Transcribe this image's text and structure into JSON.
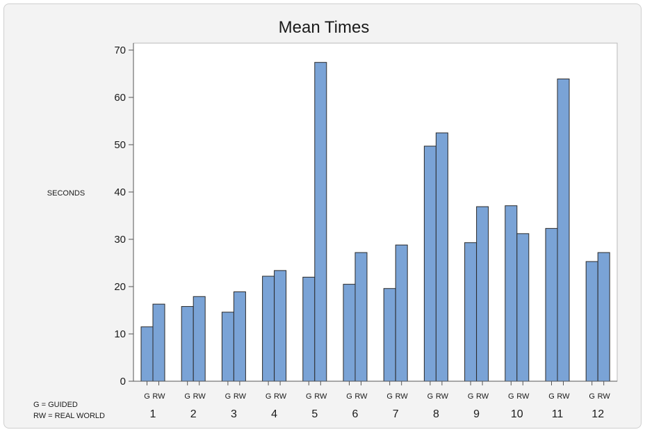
{
  "chart_data": {
    "type": "bar",
    "title": "Mean Times",
    "ylabel": "SECONDS",
    "xlabel": "",
    "ylim": [
      0,
      70
    ],
    "yticks": [
      0,
      10,
      20,
      30,
      40,
      50,
      60,
      70
    ],
    "categories": [
      "1",
      "2",
      "3",
      "4",
      "5",
      "6",
      "7",
      "8",
      "9",
      "10",
      "11",
      "12"
    ],
    "bar_labels": [
      "G",
      "RW"
    ],
    "series": [
      {
        "name": "G",
        "values": [
          11.5,
          15.8,
          14.6,
          22.2,
          22.0,
          20.5,
          19.6,
          49.7,
          29.3,
          37.1,
          32.3,
          25.3
        ]
      },
      {
        "name": "RW",
        "values": [
          16.3,
          17.9,
          18.9,
          23.4,
          67.4,
          27.2,
          28.8,
          52.5,
          36.9,
          31.2,
          63.9,
          27.2
        ]
      }
    ],
    "legend_note": [
      "G = GUIDED",
      "RW = REAL WORLD"
    ],
    "colors": {
      "bar_fill": "#7aa3d6",
      "bar_stroke": "#2a2a2a",
      "plot_bg": "#ffffff",
      "page_bg": "#f3f3f3"
    },
    "grid": false
  }
}
